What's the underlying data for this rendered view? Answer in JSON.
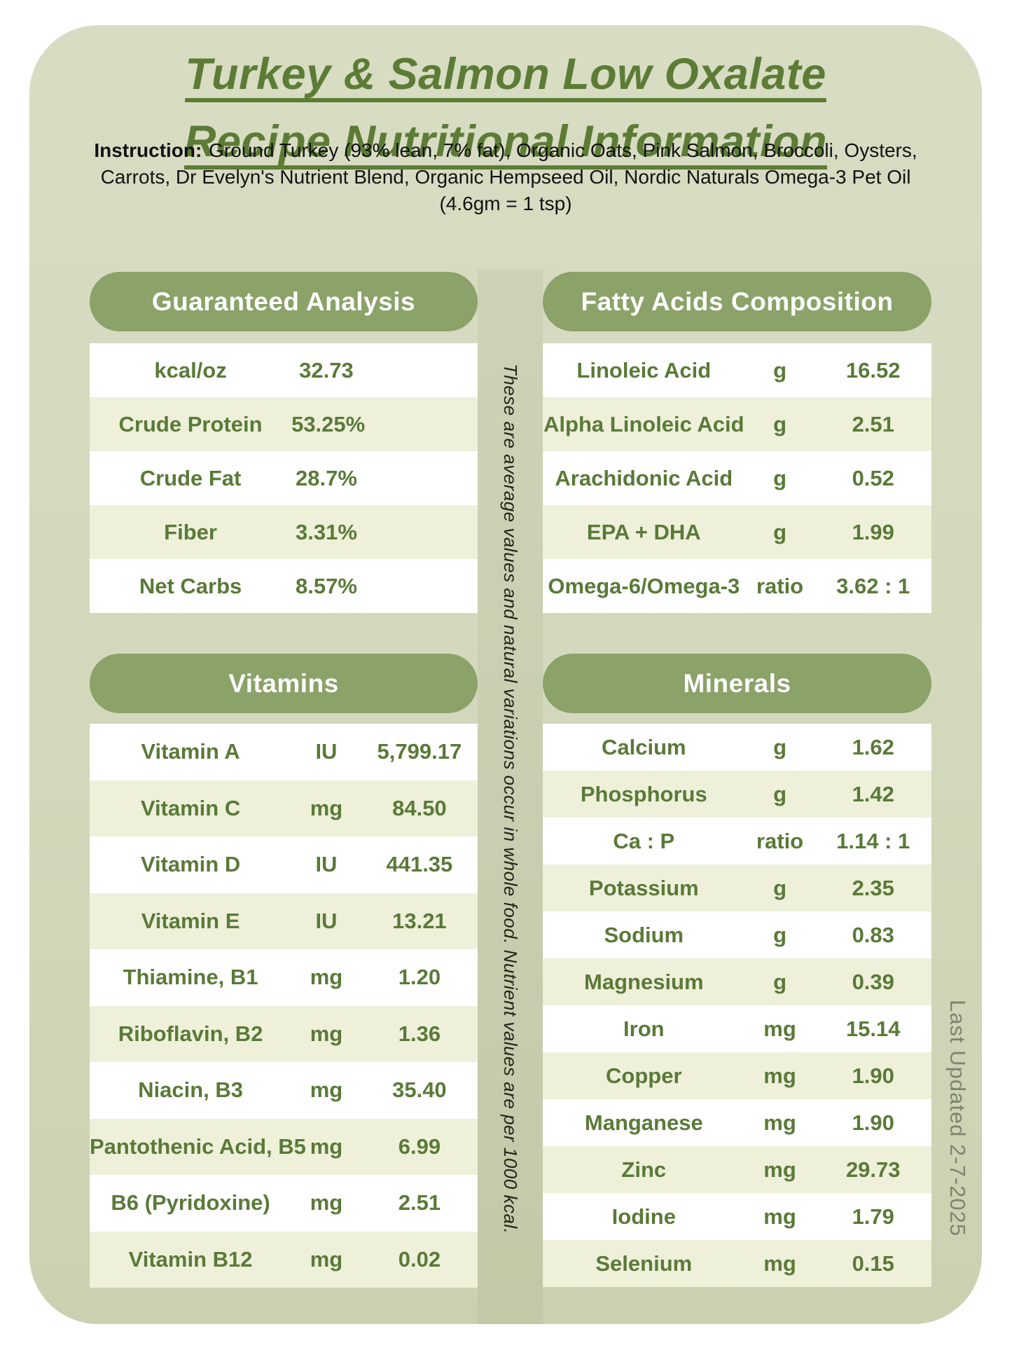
{
  "title": {
    "line1": "Turkey & Salmon Low Oxalate",
    "line2": "Recipe Nutritional Information"
  },
  "instruction": {
    "label": "Instruction:",
    "text": "Ground Turkey (93% lean, 7% fat), Organic Oats, Pink Salmon, Broccoli, Oysters, Carrots, Dr Evelyn's Nutrient Blend, Organic Hempseed Oil, Nordic Naturals Omega-3 Pet Oil (4.6gm = 1 tsp)"
  },
  "side_notes": {
    "middle": "These are average values and natural variations occur in whole food. Nutrient values are per 1000 kcal.",
    "last_updated": "Last Updated 2-7-2025"
  },
  "sections": [
    {
      "id": "guaranteed-analysis",
      "title": "Guaranteed Analysis",
      "rows": [
        [
          "kcal/oz",
          "32.73"
        ],
        [
          "Crude Protein",
          "53.25%"
        ],
        [
          "Crude Fat",
          "28.7%"
        ],
        [
          "Fiber",
          "3.31%"
        ],
        [
          "Net Carbs",
          "8.57%"
        ]
      ]
    },
    {
      "id": "fatty-acids",
      "title": "Fatty Acids Composition",
      "rows": [
        [
          "Linoleic Acid",
          "g",
          "16.52"
        ],
        [
          "Alpha Linoleic Acid",
          "g",
          "2.51"
        ],
        [
          "Arachidonic Acid",
          "g",
          "0.52"
        ],
        [
          "EPA + DHA",
          "g",
          "1.99"
        ],
        [
          "Omega-6/Omega-3",
          "ratio",
          "3.62 : 1"
        ]
      ]
    },
    {
      "id": "vitamins",
      "title": "Vitamins",
      "rows": [
        [
          "Vitamin A",
          "IU",
          "5,799.17"
        ],
        [
          "Vitamin C",
          "mg",
          "84.50"
        ],
        [
          "Vitamin D",
          "IU",
          "441.35"
        ],
        [
          "Vitamin E",
          "IU",
          "13.21"
        ],
        [
          "Thiamine, B1",
          "mg",
          "1.20"
        ],
        [
          "Riboflavin, B2",
          "mg",
          "1.36"
        ],
        [
          "Niacin, B3",
          "mg",
          "35.40"
        ],
        [
          "Pantothenic Acid, B5",
          "mg",
          "6.99"
        ],
        [
          "B6 (Pyridoxine)",
          "mg",
          "2.51"
        ],
        [
          "Vitamin B12",
          "mg",
          "0.02"
        ]
      ]
    },
    {
      "id": "minerals",
      "title": "Minerals",
      "rows": [
        [
          "Calcium",
          "g",
          "1.62"
        ],
        [
          "Phosphorus",
          "g",
          "1.42"
        ],
        [
          "Ca : P",
          "ratio",
          "1.14 : 1"
        ],
        [
          "Potassium",
          "g",
          "2.35"
        ],
        [
          "Sodium",
          "g",
          "0.83"
        ],
        [
          "Magnesium",
          "g",
          "0.39"
        ],
        [
          "Iron",
          "mg",
          "15.14"
        ],
        [
          "Copper",
          "mg",
          "1.90"
        ],
        [
          "Manganese",
          "mg",
          "1.90"
        ],
        [
          "Zinc",
          "mg",
          "29.73"
        ],
        [
          "Iodine",
          "mg",
          "1.79"
        ],
        [
          "Selenium",
          "mg",
          "0.15"
        ]
      ]
    }
  ],
  "colors": {
    "card_background": "#d3d8bc",
    "header_pill": "#8ba268",
    "pill_text": "#ffffff",
    "table_text_green": "#5a7a38",
    "row_alt_green": "#eef0da",
    "row_white": "#ffffff",
    "title_green": "#5c7c36",
    "instruction_text": "#121212",
    "updated_text": "#7d8471"
  }
}
